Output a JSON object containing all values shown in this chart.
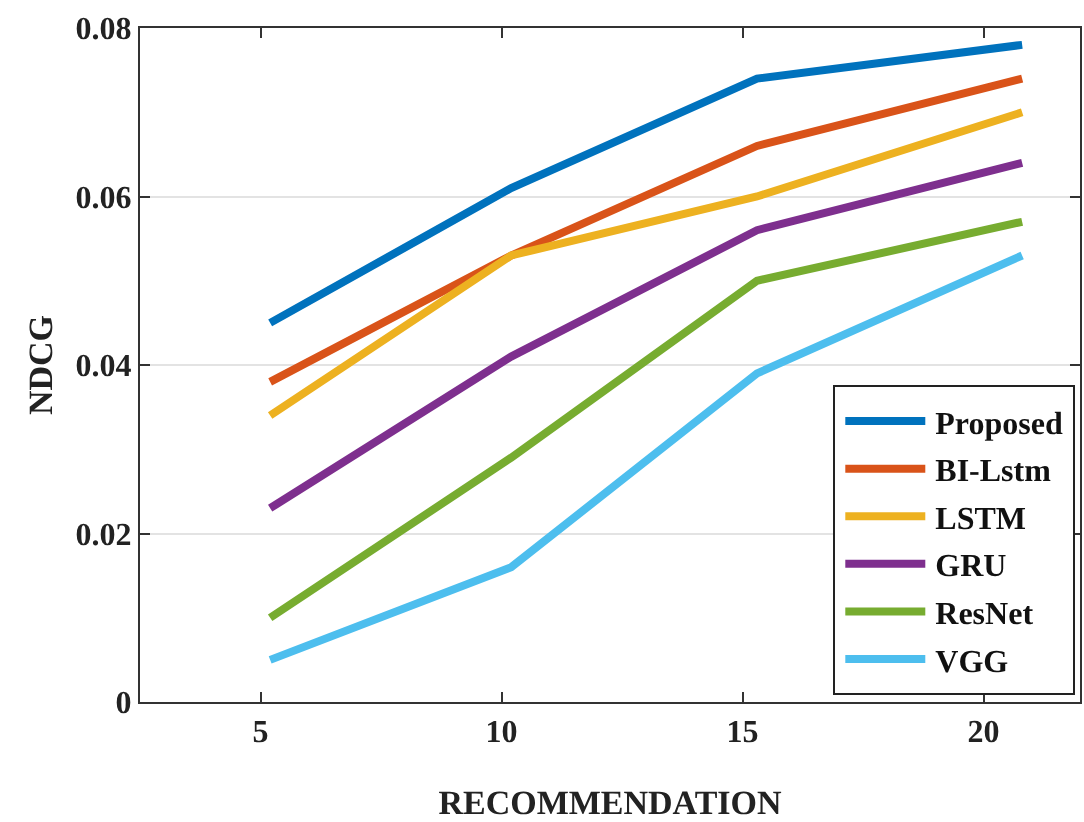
{
  "chart_data": {
    "type": "line",
    "xlabel": "RECOMMENDATION",
    "ylabel": "NDCG",
    "x": [
      5.2,
      10.2,
      15.3,
      20.8
    ],
    "series": [
      {
        "name": "Proposed",
        "color": "#0072bd",
        "values": [
          0.045,
          0.061,
          0.074,
          0.078
        ]
      },
      {
        "name": "BI-Lstm",
        "color": "#d95319",
        "values": [
          0.038,
          0.053,
          0.066,
          0.074
        ]
      },
      {
        "name": "LSTM",
        "color": "#edb120",
        "values": [
          0.034,
          0.053,
          0.06,
          0.07
        ]
      },
      {
        "name": "GRU",
        "color": "#7e2f8e",
        "values": [
          0.023,
          0.041,
          0.056,
          0.064
        ]
      },
      {
        "name": "ResNet",
        "color": "#77ac30",
        "values": [
          0.01,
          0.029,
          0.05,
          0.057
        ]
      },
      {
        "name": "VGG",
        "color": "#4dbeee",
        "values": [
          0.005,
          0.016,
          0.039,
          0.053
        ]
      }
    ],
    "xlim": [
      2.5,
      22
    ],
    "xticks": [
      5,
      10,
      15,
      20
    ],
    "ylim": [
      0,
      0.08
    ],
    "yticks": [
      {
        "value": 0,
        "label": "0"
      },
      0.02,
      0.04,
      0.06,
      0.08
    ],
    "grid": "y",
    "legend": "bottom right",
    "marker": "none",
    "line_style": "solid"
  }
}
